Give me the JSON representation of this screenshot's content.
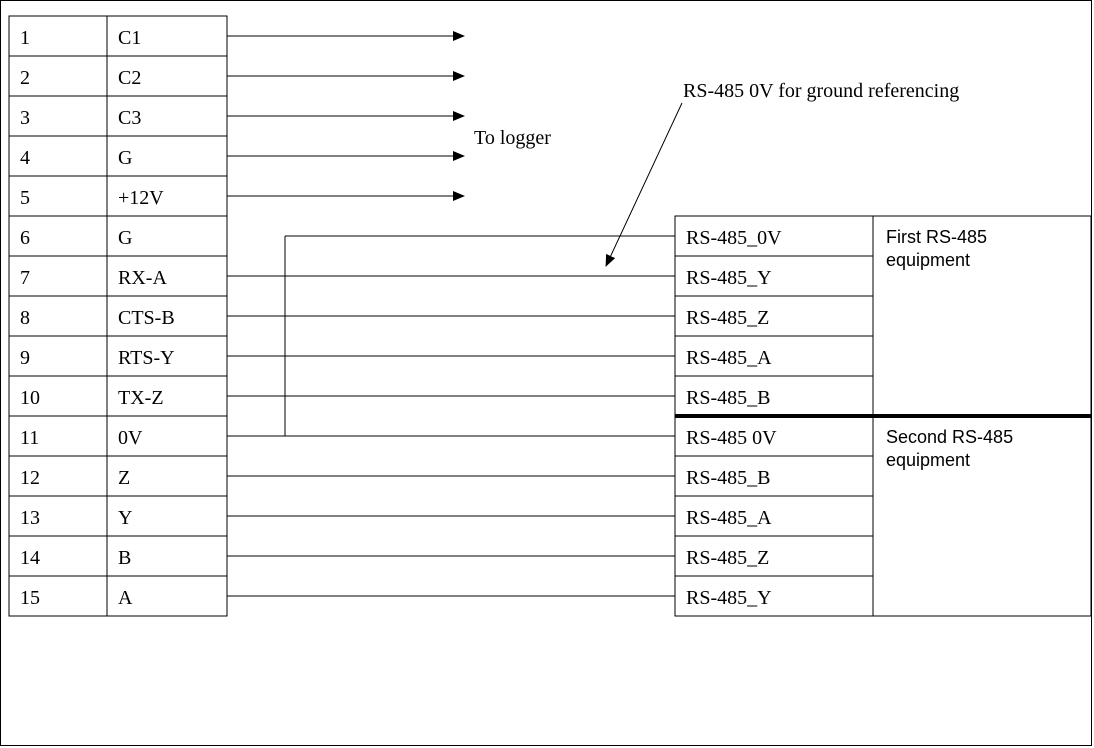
{
  "terminal_block": {
    "pins": [
      {
        "num": "1",
        "label": "C1"
      },
      {
        "num": "2",
        "label": "C2"
      },
      {
        "num": "3",
        "label": "C3"
      },
      {
        "num": "4",
        "label": "G"
      },
      {
        "num": "5",
        "label": "+12V"
      },
      {
        "num": "6",
        "label": "G"
      },
      {
        "num": "7",
        "label": "RX-A"
      },
      {
        "num": "8",
        "label": "CTS-B"
      },
      {
        "num": "9",
        "label": "RTS-Y"
      },
      {
        "num": "10",
        "label": "TX-Z"
      },
      {
        "num": "11",
        "label": "0V"
      },
      {
        "num": "12",
        "label": "Z"
      },
      {
        "num": "13",
        "label": "Y"
      },
      {
        "num": "14",
        "label": "B"
      },
      {
        "num": "15",
        "label": "A"
      }
    ]
  },
  "logger_label": "To logger",
  "ground_note": "RS-485 0V for ground referencing",
  "equipment": [
    {
      "name": "First RS-485 equipment",
      "name_lines": [
        "First RS-485",
        "equipment"
      ],
      "signals": [
        "RS-485_0V",
        "RS-485_Y",
        "RS-485_Z",
        "RS-485_A",
        "RS-485_B"
      ]
    },
    {
      "name": "Second RS-485 equipment",
      "name_lines": [
        "Second RS-485",
        "equipment"
      ],
      "signals": [
        "RS-485 0V",
        "RS-485_B",
        "RS-485_A",
        "RS-485_Z",
        "RS-485_Y"
      ]
    }
  ]
}
